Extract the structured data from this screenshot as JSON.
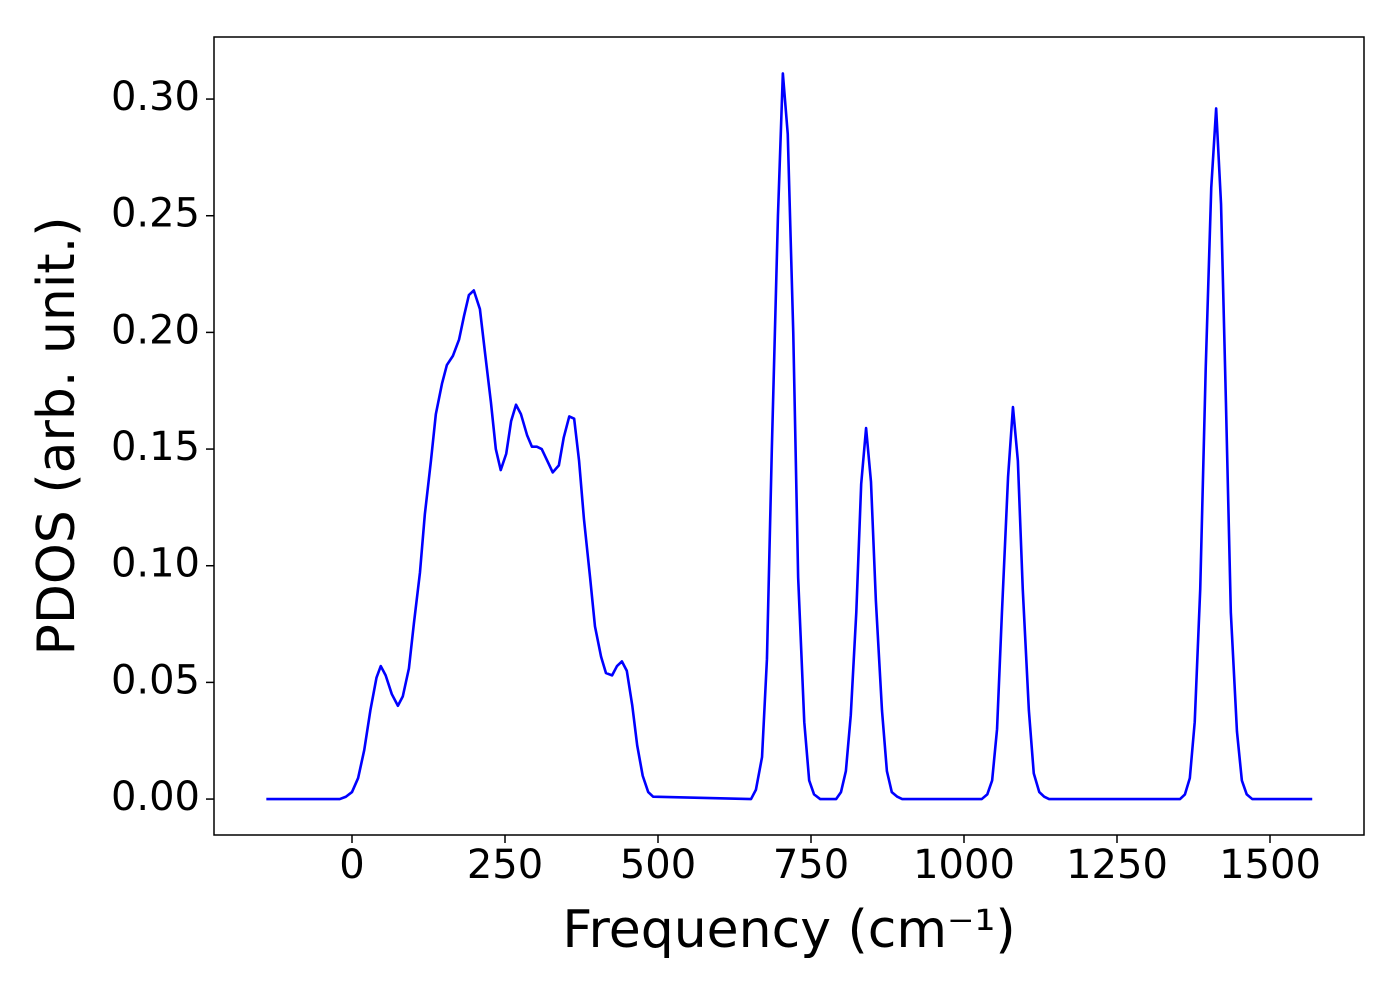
{
  "chart_data": {
    "type": "line",
    "xlabel": "Frequency (cm⁻¹)",
    "ylabel": "PDOS (arb. unit.)",
    "xlim": [
      -225.5,
      1653.6
    ],
    "ylim": [
      -0.0154,
      0.3266
    ],
    "xticks": [
      0,
      250,
      500,
      750,
      1000,
      1250,
      1500
    ],
    "yticks": [
      {
        "value": 0,
        "label": "0.00"
      },
      {
        "value": 0.05,
        "label": "0.05"
      },
      {
        "value": 0.1,
        "label": "0.10"
      },
      {
        "value": 0.15,
        "label": "0.15"
      },
      {
        "value": 0.2,
        "label": "0.20"
      },
      {
        "value": 0.25,
        "label": "0.25"
      },
      {
        "value": 0.3,
        "label": "0.30"
      }
    ],
    "grid": false,
    "series": [
      {
        "color": "#0000ff",
        "x": [
          -140,
          -20,
          -10,
          0,
          10,
          20,
          30,
          40,
          47,
          55,
          65,
          75,
          83,
          93,
          101,
          111,
          119,
          129,
          137,
          147,
          155,
          165,
          175,
          183,
          191,
          199,
          209,
          217,
          227,
          235,
          243,
          252,
          260,
          268,
          276,
          286,
          294,
          302,
          310,
          319,
          328,
          338,
          346,
          355,
          363,
          371,
          379,
          389,
          397,
          407,
          415,
          425,
          433,
          441,
          449,
          458,
          466,
          475,
          484,
          492,
          652,
          660,
          670,
          678,
          686,
          696,
          704,
          712,
          721,
          729,
          739,
          747,
          755,
          765,
          791,
          799,
          807,
          815,
          824,
          832,
          840,
          848,
          856,
          866,
          874,
          882,
          891,
          899,
          1029,
          1038,
          1046,
          1054,
          1062,
          1072,
          1080,
          1088,
          1096,
          1106,
          1114,
          1123,
          1131,
          1139,
          1353,
          1361,
          1369,
          1377,
          1386,
          1395,
          1404,
          1412,
          1420,
          1428,
          1436,
          1446,
          1454,
          1462,
          1471,
          1569
        ],
        "values": [
          0,
          0,
          0.001,
          0.003,
          0.009,
          0.021,
          0.038,
          0.052,
          0.057,
          0.053,
          0.045,
          0.04,
          0.044,
          0.056,
          0.075,
          0.097,
          0.122,
          0.145,
          0.165,
          0.178,
          0.186,
          0.19,
          0.197,
          0.207,
          0.216,
          0.218,
          0.21,
          0.192,
          0.17,
          0.15,
          0.141,
          0.148,
          0.162,
          0.169,
          0.165,
          0.156,
          0.151,
          0.151,
          0.15,
          0.145,
          0.14,
          0.143,
          0.155,
          0.164,
          0.163,
          0.145,
          0.12,
          0.095,
          0.074,
          0.061,
          0.054,
          0.053,
          0.057,
          0.059,
          0.055,
          0.04,
          0.023,
          0.01,
          0.003,
          0.001,
          0,
          0.004,
          0.018,
          0.06,
          0.15,
          0.25,
          0.311,
          0.285,
          0.2,
          0.095,
          0.033,
          0.008,
          0.002,
          0,
          0,
          0.003,
          0.012,
          0.036,
          0.08,
          0.135,
          0.159,
          0.136,
          0.085,
          0.038,
          0.012,
          0.003,
          0.001,
          0,
          0,
          0.002,
          0.008,
          0.03,
          0.08,
          0.138,
          0.168,
          0.145,
          0.09,
          0.038,
          0.011,
          0.003,
          0.001,
          0,
          0,
          0.002,
          0.009,
          0.033,
          0.09,
          0.185,
          0.262,
          0.296,
          0.255,
          0.17,
          0.08,
          0.029,
          0.008,
          0.002,
          0,
          0
        ]
      }
    ]
  }
}
